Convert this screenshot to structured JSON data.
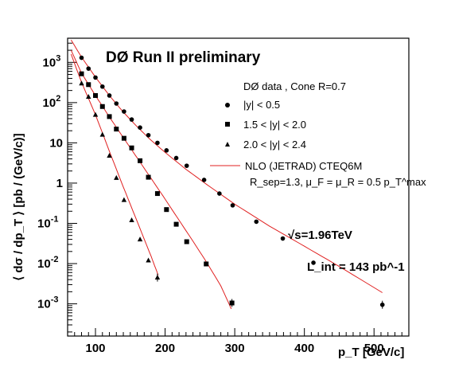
{
  "chart_data": {
    "type": "scatter",
    "title": "DØ Run II preliminary",
    "xlabel": "p_T [GeV/c]",
    "ylabel": "⟨ dσ / dp_T ⟩ [pb / (GeV/c)]",
    "xlim": [
      60,
      550
    ],
    "ylim_log10": [
      -3.8,
      3.6
    ],
    "y_scale": "log",
    "x_ticks": [
      100,
      200,
      300,
      400,
      500
    ],
    "x_tick_labels": [
      "100",
      "200",
      "300",
      "400",
      "500"
    ],
    "y_ticks": [
      {
        "exp": 3,
        "label": "10",
        "sup": "3"
      },
      {
        "exp": 2,
        "label": "10",
        "sup": "2"
      },
      {
        "exp": 1,
        "label": "10",
        "sup": ""
      },
      {
        "exp": 0,
        "label": "1",
        "sup": ""
      },
      {
        "exp": -1,
        "label": "10",
        "sup": "-1"
      },
      {
        "exp": -2,
        "label": "10",
        "sup": "-2"
      },
      {
        "exp": -3,
        "label": "10",
        "sup": "-3"
      }
    ],
    "legend_header": "DØ data , Cone R=0.7",
    "legend_placement": "top-right",
    "series": [
      {
        "name": "|y| < 0.5",
        "marker": "circle",
        "color": "#000000",
        "x": [
          80,
          90,
          100,
          110,
          120,
          130,
          141,
          152,
          164,
          176,
          189,
          202,
          216,
          231,
          256,
          278,
          297,
          331,
          369,
          413,
          512
        ],
        "y": [
          1300,
          700,
          420,
          250,
          150,
          95,
          60,
          38,
          24,
          15.5,
          10,
          6.5,
          4.2,
          2.7,
          1.2,
          0.55,
          0.28,
          0.11,
          0.042,
          0.0105,
          0.00095
        ]
      },
      {
        "name": "1.5 < |y| < 2.0",
        "marker": "square",
        "color": "#000000",
        "x": [
          80,
          90,
          100,
          110,
          120,
          130,
          141,
          152,
          164,
          176,
          189,
          202,
          216,
          231,
          259,
          296
        ],
        "y": [
          520,
          280,
          150,
          80,
          45,
          22,
          13,
          7.5,
          3.6,
          1.4,
          0.55,
          0.22,
          0.095,
          0.035,
          0.0098,
          0.00105
        ]
      },
      {
        "name": "2.0 < |y| < 2.4",
        "marker": "triangle",
        "color": "#000000",
        "x": [
          80,
          90,
          100,
          110,
          120,
          130,
          141,
          152,
          164,
          176,
          189
        ],
        "y": [
          300,
          140,
          50,
          16,
          4.8,
          1.35,
          0.38,
          0.12,
          0.04,
          0.012,
          0.0045
        ]
      }
    ],
    "fit_curves": [
      {
        "name": "NLO (JETRAD) CTEQ6M",
        "color": "#e02020",
        "x": [
          65,
          80,
          100,
          120,
          140,
          160,
          180,
          200,
          230,
          260,
          300,
          350,
          400,
          450,
          512
        ],
        "y": [
          3600,
          1350,
          430,
          150,
          58,
          25,
          11.5,
          5.8,
          2.2,
          0.92,
          0.3,
          0.085,
          0.027,
          0.0085,
          0.0019
        ]
      },
      {
        "name": "",
        "color": "#e02020",
        "x": [
          65,
          80,
          100,
          120,
          140,
          160,
          180,
          200,
          220,
          240,
          260,
          280,
          295
        ],
        "y": [
          2000,
          540,
          150,
          44,
          13.5,
          4.2,
          1.3,
          0.4,
          0.12,
          0.036,
          0.0105,
          0.0028,
          0.00075
        ]
      },
      {
        "name": "",
        "color": "#e02020",
        "x": [
          65,
          80,
          100,
          120,
          140,
          160,
          180,
          190
        ],
        "y": [
          1600,
          320,
          50,
          6.2,
          0.8,
          0.11,
          0.015,
          0.0052
        ]
      }
    ],
    "annotations": {
      "rsep_line": "R_sep=1.3,  μ_F = μ_R = 0.5 p_T^max",
      "energy": "√s=1.96TeV",
      "luminosity": "L_int = 143 pb^-1"
    }
  }
}
